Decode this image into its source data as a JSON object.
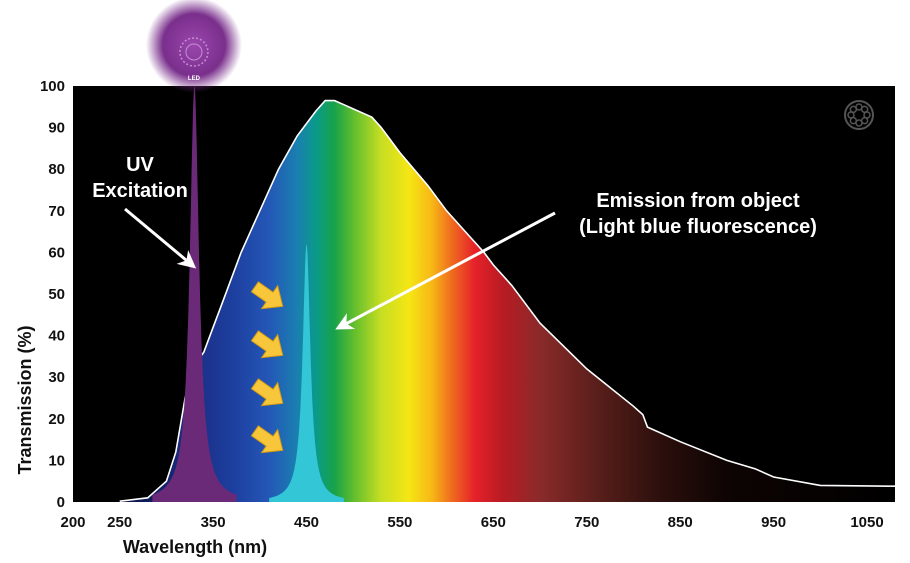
{
  "chart_data": {
    "type": "area",
    "xlabel": "Wavelength (nm)",
    "ylabel": "Transmission (%)",
    "xlim": [
      200,
      1080
    ],
    "ylim": [
      0,
      100
    ],
    "x_ticks": [
      200,
      250,
      350,
      450,
      550,
      650,
      750,
      850,
      950,
      1050
    ],
    "y_ticks": [
      0,
      10,
      20,
      30,
      40,
      50,
      60,
      70,
      80,
      90,
      100
    ],
    "grid": false,
    "colors": {
      "background": "#000000",
      "uv_peak": "#6b2a78",
      "emission_peak": "#33c6d6",
      "curve_outline": "#ffffff",
      "arrows": "#f7c63a",
      "led_glow": "#7a2f8c"
    },
    "series": [
      {
        "x": [
          250,
          280,
          300,
          310,
          320,
          330,
          340,
          350,
          360,
          380,
          400,
          420,
          440,
          460,
          470,
          480,
          490,
          500,
          520,
          530,
          550,
          580,
          600,
          620,
          640,
          650,
          670,
          700,
          750,
          800,
          810,
          815,
          850,
          900,
          930,
          950,
          1000,
          1080
        ],
        "values": [
          0.2,
          1,
          5,
          12,
          25,
          33,
          36,
          42,
          48,
          60,
          70,
          80,
          88,
          94,
          96.5,
          96.5,
          95.5,
          94.5,
          92.5,
          90,
          84,
          76,
          70,
          65,
          60,
          57,
          52,
          43,
          32,
          23,
          21,
          18,
          14.5,
          10,
          8,
          6,
          4,
          3.8
        ]
      },
      {
        "name": "UV Excitation",
        "peak_x": 330,
        "peak_value": 100
      },
      {
        "name": "Emission from object (Light blue fluorescence)",
        "peak_x": 450,
        "peak_value": 62
      }
    ],
    "annotations": [
      {
        "id": "uv",
        "lines": [
          "UV",
          "Excitation"
        ]
      },
      {
        "id": "emission",
        "lines": [
          "Emission from object",
          "(Light blue fluorescence)"
        ]
      }
    ],
    "led_label": "LED"
  }
}
